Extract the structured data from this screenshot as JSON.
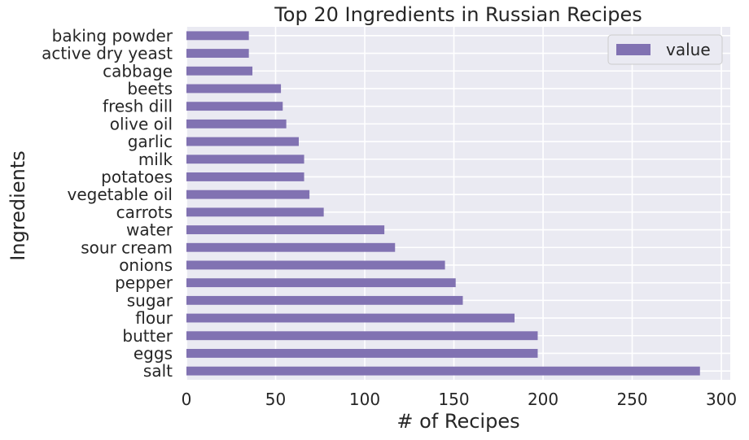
{
  "chart_data": {
    "type": "bar",
    "orientation": "horizontal",
    "title": "Top 20 Ingredients in Russian Recipes",
    "xlabel": "# of Recipes",
    "ylabel": "Ingredients",
    "categories": [
      "salt",
      "eggs",
      "butter",
      "flour",
      "sugar",
      "pepper",
      "onions",
      "sour cream",
      "water",
      "carrots",
      "vegetable oil",
      "potatoes",
      "milk",
      "garlic",
      "olive oil",
      "fresh dill",
      "beets",
      "cabbage",
      "active dry yeast",
      "baking powder"
    ],
    "series": [
      {
        "name": "value",
        "values": [
          288,
          197,
          197,
          184,
          155,
          151,
          145,
          117,
          111,
          77,
          69,
          66,
          66,
          63,
          56,
          54,
          53,
          37,
          35,
          35
        ]
      }
    ],
    "xlim": [
      0,
      305
    ],
    "xticks": [
      0,
      50,
      100,
      150,
      200,
      250,
      300
    ],
    "grid": true,
    "legend_position": "top-right",
    "colors": {
      "bar": "#8172b2",
      "background": "#eaeaf2",
      "grid": "#ffffff",
      "text": "#262626"
    }
  }
}
